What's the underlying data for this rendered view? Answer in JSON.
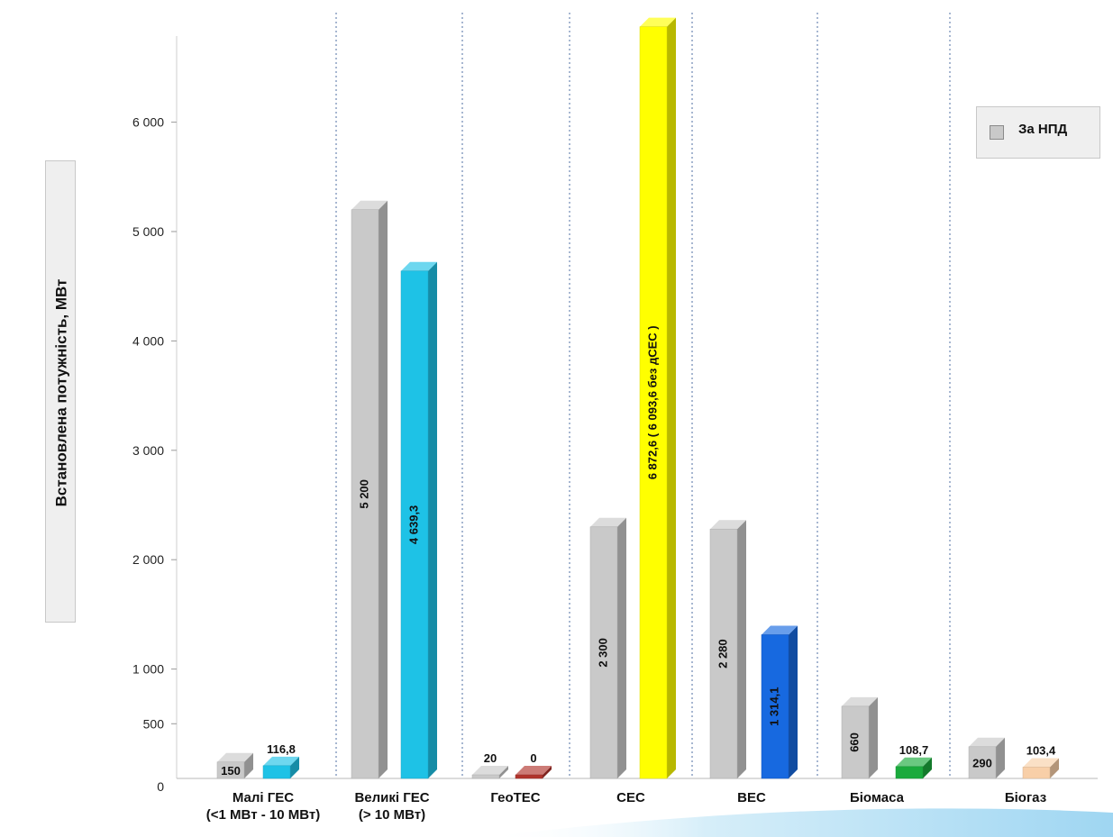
{
  "chart_data": {
    "type": "bar",
    "ylabel": "Встановлена потужність, МВт",
    "legend": [
      {
        "name": "За НПД",
        "color": "#c9c9c9"
      }
    ],
    "legend_position": "top-right",
    "y_ticks": [
      {
        "value": 0,
        "label": "0"
      },
      {
        "value": 500,
        "label": "500"
      },
      {
        "value": 1000,
        "label": "1 000"
      },
      {
        "value": 2000,
        "label": "2 000"
      },
      {
        "value": 3000,
        "label": "3 000"
      },
      {
        "value": 4000,
        "label": "4 000"
      },
      {
        "value": 5000,
        "label": "5 000"
      },
      {
        "value": 6000,
        "label": "6 000"
      }
    ],
    "ylim": [
      0,
      6872.6
    ],
    "categories": [
      {
        "name": "Малі ГЕС",
        "sub": "(<1 МВт - 10 МВт)"
      },
      {
        "name": "Великі ГЕС",
        "sub": "(> 10 МВт)"
      },
      {
        "name": "ГеоТЕС",
        "sub": ""
      },
      {
        "name": "СЕС",
        "sub": ""
      },
      {
        "name": "ВЕС",
        "sub": ""
      },
      {
        "name": "Біомаса",
        "sub": ""
      },
      {
        "name": "Біогаз",
        "sub": ""
      }
    ],
    "bars": [
      [
        {
          "value": 150,
          "label": "150",
          "color": "#c9c9c9"
        },
        {
          "value": 116.8,
          "label": "116,8",
          "color": "#1ec2e6"
        }
      ],
      [
        {
          "value": 5200,
          "label": "5 200",
          "color": "#c9c9c9"
        },
        {
          "value": 4639.3,
          "label": "4 639,3",
          "color": "#1ec2e6"
        }
      ],
      [
        {
          "value": 20,
          "label": "20",
          "color": "#c9c9c9"
        },
        {
          "value": 0,
          "label": "0",
          "color": "#b0342c"
        }
      ],
      [
        {
          "value": 2300,
          "label": "2 300",
          "color": "#c9c9c9"
        },
        {
          "value": 6872.6,
          "label": "6 872,6 ( 6 093,6 без дСЕС )",
          "color": "#ffff00"
        }
      ],
      [
        {
          "value": 2280,
          "label": "2 280",
          "color": "#c9c9c9"
        },
        {
          "value": 1314.1,
          "label": "1 314,1",
          "color": "#1769e0"
        }
      ],
      [
        {
          "value": 660,
          "label": "660",
          "color": "#c9c9c9"
        },
        {
          "value": 108.7,
          "label": "108,7",
          "color": "#1aaa3c"
        }
      ],
      [
        {
          "value": 290,
          "label": "290",
          "color": "#c9c9c9"
        },
        {
          "value": 103.4,
          "label": "103,4",
          "color": "#f8cfa8"
        }
      ]
    ]
  }
}
